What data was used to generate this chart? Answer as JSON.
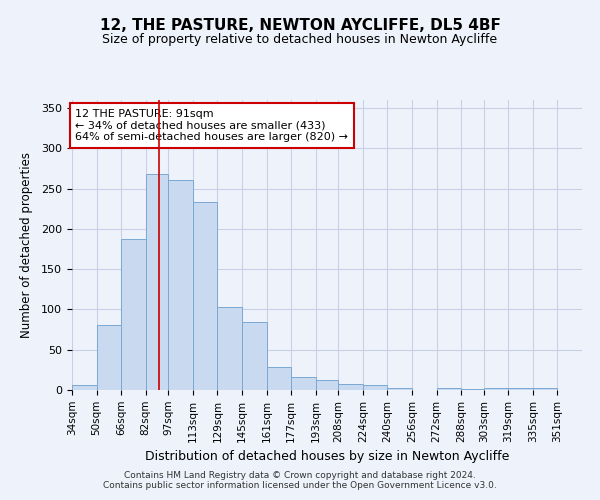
{
  "title": "12, THE PASTURE, NEWTON AYCLIFFE, DL5 4BF",
  "subtitle": "Size of property relative to detached houses in Newton Aycliffe",
  "xlabel": "Distribution of detached houses by size in Newton Aycliffe",
  "ylabel": "Number of detached properties",
  "bar_left_edges": [
    34,
    50,
    66,
    82,
    97,
    113,
    129,
    145,
    161,
    177,
    193,
    208,
    224,
    240,
    256,
    272,
    288,
    303,
    319,
    335
  ],
  "bar_widths": [
    16,
    16,
    16,
    15,
    16,
    16,
    16,
    16,
    16,
    16,
    15,
    16,
    16,
    16,
    16,
    16,
    15,
    16,
    16,
    16
  ],
  "bar_heights": [
    6,
    81,
    187,
    268,
    261,
    234,
    103,
    85,
    29,
    16,
    13,
    7,
    6,
    3,
    0,
    3,
    1,
    2,
    3,
    3
  ],
  "tick_labels": [
    "34sqm",
    "50sqm",
    "66sqm",
    "82sqm",
    "97sqm",
    "113sqm",
    "129sqm",
    "145sqm",
    "161sqm",
    "177sqm",
    "193sqm",
    "208sqm",
    "224sqm",
    "240sqm",
    "256sqm",
    "272sqm",
    "288sqm",
    "303sqm",
    "319sqm",
    "335sqm",
    "351sqm"
  ],
  "tick_positions": [
    34,
    50,
    66,
    82,
    97,
    113,
    129,
    145,
    161,
    177,
    193,
    208,
    224,
    240,
    256,
    272,
    288,
    303,
    319,
    335,
    351
  ],
  "bar_color": "#c8d9f0",
  "bar_edge_color": "#7ba8d4",
  "vline_x": 91,
  "vline_color": "#cc0000",
  "ylim": [
    0,
    360
  ],
  "yticks": [
    0,
    50,
    100,
    150,
    200,
    250,
    300,
    350
  ],
  "annotation_text": "12 THE PASTURE: 91sqm\n← 34% of detached houses are smaller (433)\n64% of semi-detached houses are larger (820) →",
  "annotation_box_color": "white",
  "annotation_box_edgecolor": "#cc0000",
  "footer1": "Contains HM Land Registry data © Crown copyright and database right 2024.",
  "footer2": "Contains public sector information licensed under the Open Government Licence v3.0.",
  "background_color": "#eef2fb",
  "grid_color": "#c8d0e8",
  "xlim_left": 34,
  "xlim_right": 367
}
